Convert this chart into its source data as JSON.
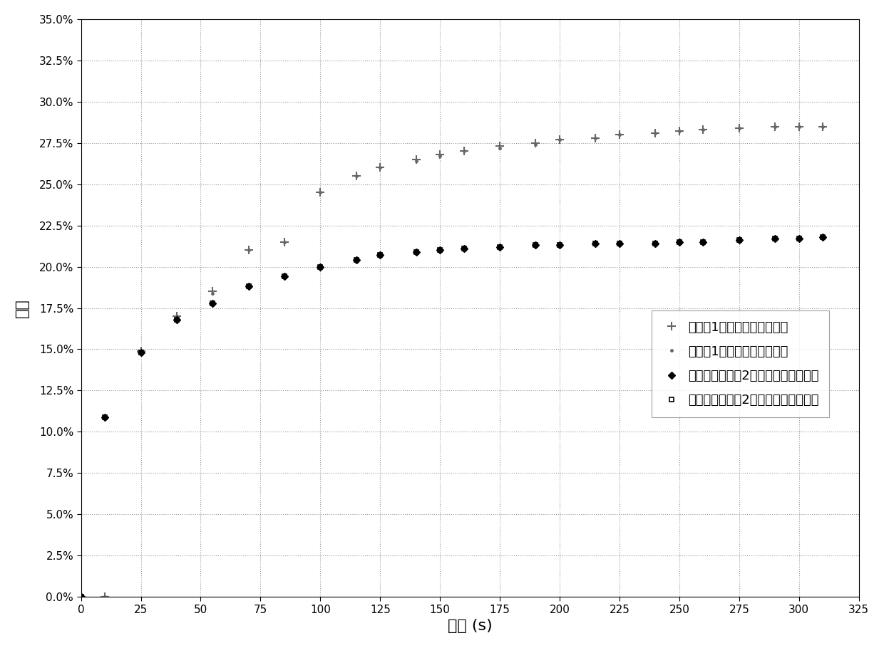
{
  "series1_test_x": [
    0,
    10,
    25,
    40,
    55,
    70,
    85,
    100,
    115,
    125,
    140,
    150,
    160,
    175,
    190,
    200,
    215,
    225,
    240,
    250,
    260,
    275,
    290,
    300,
    310
  ],
  "series1_test_y": [
    0.0,
    0.0,
    0.149,
    0.17,
    0.185,
    0.21,
    0.215,
    0.245,
    0.255,
    0.26,
    0.265,
    0.268,
    0.27,
    0.273,
    0.275,
    0.277,
    0.278,
    0.28,
    0.281,
    0.282,
    0.283,
    0.284,
    0.285,
    0.285,
    0.285
  ],
  "series1_fit_x": [
    0,
    10,
    25,
    40,
    55,
    70,
    85,
    100,
    115,
    125,
    140,
    150,
    160,
    175,
    190,
    200,
    215,
    225,
    240,
    250,
    260,
    275,
    290,
    300,
    310
  ],
  "series1_fit_y": [
    0.0,
    0.0,
    0.149,
    0.17,
    0.184,
    0.21,
    0.215,
    0.245,
    0.255,
    0.26,
    0.264,
    0.267,
    0.27,
    0.272,
    0.274,
    0.277,
    0.278,
    0.28,
    0.281,
    0.282,
    0.283,
    0.284,
    0.285,
    0.285,
    0.285
  ],
  "series2_test_x": [
    0,
    10,
    25,
    40,
    55,
    70,
    85,
    100,
    115,
    125,
    140,
    150,
    160,
    175,
    190,
    200,
    215,
    225,
    240,
    250,
    260,
    275,
    290,
    300,
    310
  ],
  "series2_test_y": [
    0.0,
    0.109,
    0.148,
    0.168,
    0.178,
    0.188,
    0.194,
    0.2,
    0.204,
    0.207,
    0.209,
    0.21,
    0.211,
    0.212,
    0.213,
    0.213,
    0.214,
    0.214,
    0.214,
    0.215,
    0.215,
    0.216,
    0.217,
    0.217,
    0.218
  ],
  "series2_fit_x": [
    0,
    10,
    25,
    40,
    55,
    70,
    85,
    100,
    115,
    125,
    140,
    150,
    160,
    175,
    190,
    200,
    215,
    225,
    240,
    250,
    260,
    275,
    290,
    300,
    310
  ],
  "series2_fit_y": [
    0.0,
    0.109,
    0.148,
    0.168,
    0.178,
    0.188,
    0.194,
    0.2,
    0.204,
    0.207,
    0.209,
    0.21,
    0.211,
    0.212,
    0.213,
    0.213,
    0.214,
    0.214,
    0.214,
    0.215,
    0.215,
    0.216,
    0.217,
    0.217,
    0.218
  ],
  "xlabel": "时间 (s)",
  "ylabel": "应变",
  "legend1": "对比例1，一个密封盖，测试",
  "legend2": "对比例1，一个密封盖，拟合",
  "legend3": "本发明的实施例2，一个密封盖，测试",
  "legend4": "本发明的实施例2，一个密封盖，拟合",
  "xlim": [
    0,
    325
  ],
  "ylim": [
    0.0,
    0.35
  ],
  "xticks": [
    0,
    25,
    50,
    75,
    100,
    125,
    150,
    175,
    200,
    225,
    250,
    275,
    300,
    325
  ],
  "yticks": [
    0.0,
    0.025,
    0.05,
    0.075,
    0.1,
    0.125,
    0.15,
    0.175,
    0.2,
    0.225,
    0.25,
    0.275,
    0.3,
    0.325,
    0.35
  ]
}
